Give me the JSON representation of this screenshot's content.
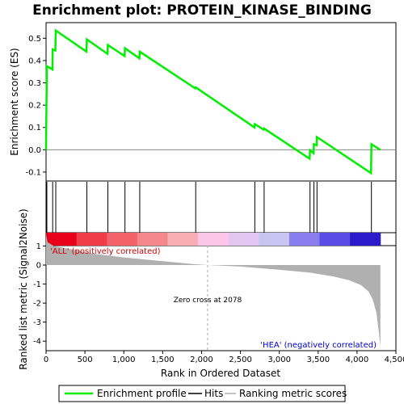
{
  "chart_data": {
    "type": "line",
    "title": "Enrichment plot: PROTEIN_KINASE_BINDING",
    "xlabel": "Rank in Ordered Dataset",
    "ylabel_top": "Enrichment score (ES)",
    "ylabel_bottom": "Ranked list metric (Signal2Noise)",
    "xlim": [
      0,
      4500
    ],
    "ylim_top": [
      -0.14,
      0.57
    ],
    "ylim_bottom": [
      -4.5,
      1.7
    ],
    "x_ticks": [
      "0",
      "500",
      "1,000",
      "1,500",
      "2,000",
      "2,500",
      "3,000",
      "3,500",
      "4,000",
      "4,500"
    ],
    "y_ticks_top": [
      "-0.1",
      "0.0",
      "0.1",
      "0.2",
      "0.3",
      "0.4",
      "0.5"
    ],
    "y_ticks_bottom": [
      "-4",
      "-3",
      "-2",
      "-1",
      "0",
      "1"
    ],
    "es_profile": [
      [
        0,
        0.0
      ],
      [
        3,
        0.13
      ],
      [
        5,
        0.2
      ],
      [
        8,
        0.3
      ],
      [
        10,
        0.375
      ],
      [
        82,
        0.36
      ],
      [
        85,
        0.45
      ],
      [
        120,
        0.445
      ],
      [
        125,
        0.535
      ],
      [
        520,
        0.44
      ],
      [
        525,
        0.495
      ],
      [
        790,
        0.43
      ],
      [
        795,
        0.47
      ],
      [
        1010,
        0.42
      ],
      [
        1015,
        0.455
      ],
      [
        1200,
        0.41
      ],
      [
        1205,
        0.44
      ],
      [
        1920,
        0.275
      ],
      [
        1925,
        0.28
      ],
      [
        2680,
        0.1
      ],
      [
        2685,
        0.115
      ],
      [
        2800,
        0.09
      ],
      [
        2805,
        0.095
      ],
      [
        3390,
        -0.04
      ],
      [
        3395,
        -0.002
      ],
      [
        3440,
        -0.015
      ],
      [
        3445,
        0.025
      ],
      [
        3480,
        0.02
      ],
      [
        3485,
        0.057
      ],
      [
        4180,
        -0.105
      ],
      [
        4185,
        0.025
      ],
      [
        4300,
        0.0
      ]
    ],
    "hits": [
      3,
      5,
      8,
      10,
      85,
      125,
      525,
      795,
      1015,
      1205,
      1925,
      2685,
      2805,
      3395,
      3445,
      3485,
      4185
    ],
    "metric_curve": [
      [
        0,
        1.6
      ],
      [
        20,
        1.2
      ],
      [
        100,
        1.0
      ],
      [
        300,
        0.85
      ],
      [
        600,
        0.6
      ],
      [
        1000,
        0.4
      ],
      [
        1500,
        0.2
      ],
      [
        1900,
        0.05
      ],
      [
        2078,
        0.0
      ],
      [
        2500,
        -0.08
      ],
      [
        3000,
        -0.25
      ],
      [
        3400,
        -0.4
      ],
      [
        3700,
        -0.6
      ],
      [
        3900,
        -0.8
      ],
      [
        4050,
        -1.05
      ],
      [
        4150,
        -1.4
      ],
      [
        4200,
        -1.8
      ],
      [
        4250,
        -2.5
      ],
      [
        4280,
        -3.5
      ],
      [
        4300,
        -4.3
      ]
    ],
    "zero_cross": 2078,
    "max_rank": 4300,
    "colors": {
      "es_line": "#00ee00",
      "hit": "#000000",
      "metric_fill": "#b0b0b0",
      "zero_dash": "#aaaaaa",
      "bar_segments": [
        "#e8001a",
        "#f23b48",
        "#f26269",
        "#f4878c",
        "#f9aeb5",
        "#fbc6e8",
        "#e3c7f2",
        "#c9c4f2",
        "#8a7df0",
        "#5a4ae6",
        "#2a1acc"
      ]
    },
    "annotations": {
      "pos": "'ALL' (positively correlated)",
      "neg": "'HEA' (negatively correlated)",
      "zero": "Zero cross at 2078"
    },
    "legend": [
      "Enrichment profile",
      "Hits",
      "Ranking metric scores"
    ]
  }
}
